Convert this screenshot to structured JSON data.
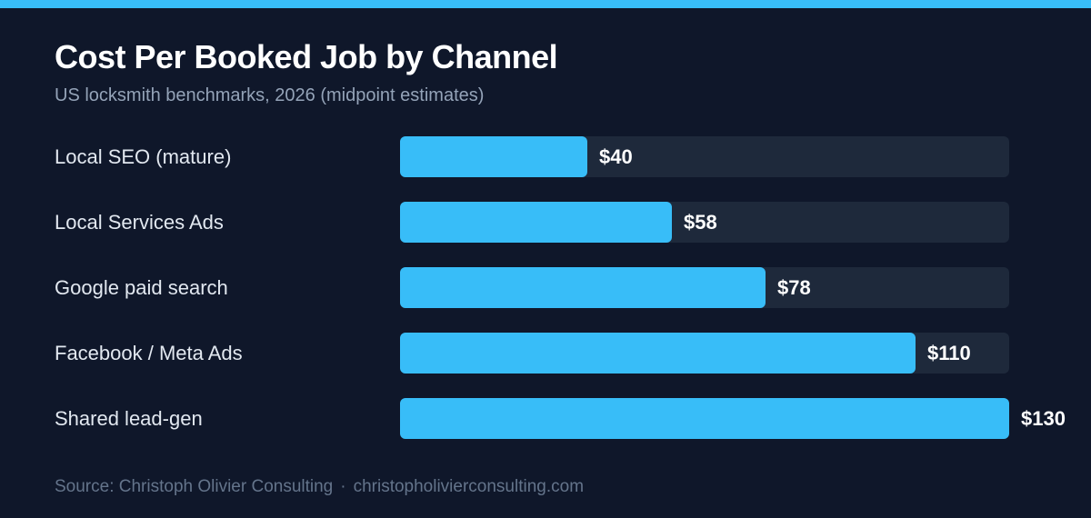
{
  "colors": {
    "background": "#0f172a",
    "accent": "#38bdf8",
    "track": "#1e293b",
    "title": "#ffffff",
    "subtitle": "#94a3b8",
    "label": "#e2e8f0",
    "footer": "#64748b"
  },
  "footer": {
    "source": "Source: Christoph Olivier Consulting",
    "separator": "·",
    "site": "christopholivierconsulting.com"
  },
  "chart_data": {
    "type": "bar",
    "orientation": "horizontal",
    "title": "Cost Per Booked Job by Channel",
    "subtitle": "US locksmith benchmarks, 2026 (midpoint estimates)",
    "categories": [
      "Local SEO (mature)",
      "Local Services Ads",
      "Google paid search",
      "Facebook / Meta Ads",
      "Shared lead-gen"
    ],
    "values": [
      40,
      58,
      78,
      110,
      130
    ],
    "value_labels": [
      "$40",
      "$58",
      "$78",
      "$110",
      "$130"
    ],
    "xlim": [
      0,
      130
    ],
    "grid": false,
    "legend": "none"
  }
}
